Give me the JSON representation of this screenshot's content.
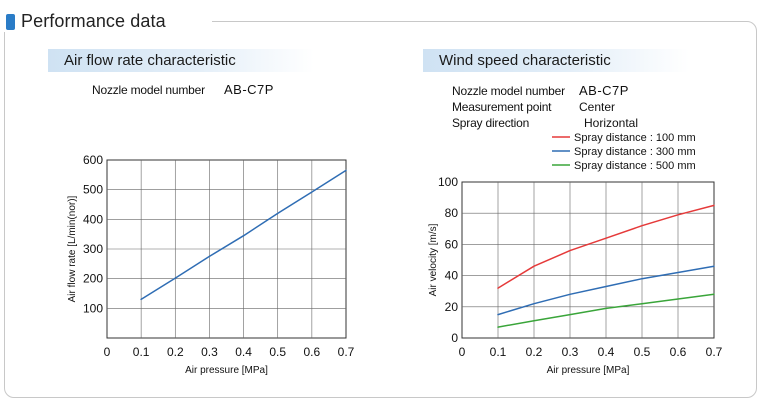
{
  "section": {
    "title": "Performance data"
  },
  "left": {
    "header": "Air flow rate characteristic",
    "info": [
      {
        "label": "Nozzle model number",
        "value": "AB-C7P"
      }
    ]
  },
  "right": {
    "header": "Wind speed characteristic",
    "info": [
      {
        "label": "Nozzle model number",
        "value": "AB-C7P"
      },
      {
        "label": "Measurement point",
        "value": "Center"
      },
      {
        "label": "Spray direction",
        "value": "Horizontal"
      }
    ]
  },
  "colors": {
    "accent": "#2a7cc7",
    "line_red": "#e53a3a",
    "line_blue": "#2f6db4",
    "line_green": "#3aa53a",
    "grid": "#666666"
  },
  "chart_data": [
    {
      "type": "line",
      "xlabel": "Air pressure  [MPa]",
      "ylabel": "Air flow rate  [L/min(nor)]",
      "xlim": [
        0,
        0.7
      ],
      "ylim": [
        0,
        600
      ],
      "x_ticks": [
        "0",
        "0.1",
        "0.2",
        "0.3",
        "0.4",
        "0.5",
        "0.6",
        "0.7"
      ],
      "y_ticks": [
        "100",
        "200",
        "300",
        "400",
        "500",
        "600"
      ],
      "grid": true,
      "series": [
        {
          "color": "#2f6db4",
          "x": [
            0.1,
            0.2,
            0.3,
            0.4,
            0.5,
            0.6,
            0.7
          ],
          "y": [
            130,
            202,
            275,
            345,
            420,
            492,
            565
          ]
        }
      ]
    },
    {
      "type": "line",
      "xlabel": "Air pressure  [MPa]",
      "ylabel": "Air velocity  [m/s]",
      "xlim": [
        0,
        0.7
      ],
      "ylim": [
        0,
        100
      ],
      "x_ticks": [
        "0",
        "0.1",
        "0.2",
        "0.3",
        "0.4",
        "0.5",
        "0.6",
        "0.7"
      ],
      "y_ticks": [
        "0",
        "20",
        "40",
        "60",
        "80",
        "100"
      ],
      "grid": true,
      "legend": "top-right",
      "series": [
        {
          "name": "Spray distance : 100 mm",
          "color": "#e53a3a",
          "x": [
            0.1,
            0.2,
            0.3,
            0.4,
            0.5,
            0.6,
            0.7
          ],
          "y": [
            32,
            46,
            56,
            64,
            72,
            79,
            85
          ]
        },
        {
          "name": "Spray distance : 300 mm",
          "color": "#2f6db4",
          "x": [
            0.1,
            0.2,
            0.3,
            0.4,
            0.5,
            0.6,
            0.7
          ],
          "y": [
            15,
            22,
            28,
            33,
            38,
            42,
            46
          ]
        },
        {
          "name": "Spray distance : 500 mm",
          "color": "#3aa53a",
          "x": [
            0.1,
            0.2,
            0.3,
            0.4,
            0.5,
            0.6,
            0.7
          ],
          "y": [
            7,
            11,
            15,
            19,
            22,
            25,
            28
          ]
        }
      ]
    }
  ]
}
